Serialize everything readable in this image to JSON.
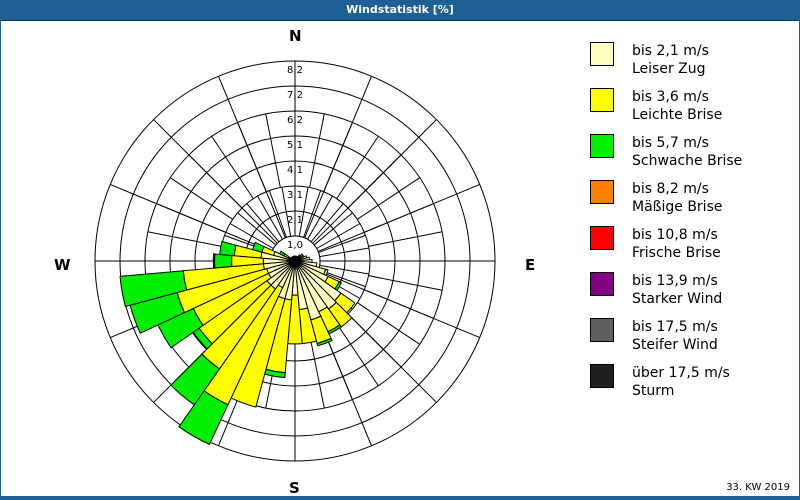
{
  "title": "Windstatistik [%]",
  "footer": "33. KW 2019",
  "compass": {
    "n": "N",
    "e": "E",
    "s": "S",
    "w": "W"
  },
  "legend": [
    {
      "range": "bis 2,1 m/s",
      "name": "Leiser Zug",
      "color": "#ffffc0"
    },
    {
      "range": "bis 3,6 m/s",
      "name": "Leichte Brise",
      "color": "#ffff00"
    },
    {
      "range": "bis 5,7 m/s",
      "name": "Schwache Brise",
      "color": "#00ee00"
    },
    {
      "range": "bis 8,2 m/s",
      "name": "Mäßige Brise",
      "color": "#ff8000"
    },
    {
      "range": "bis 10,8 m/s",
      "name": "Frische Brise",
      "color": "#ff0000"
    },
    {
      "range": "bis 13,9 m/s",
      "name": "Starker Wind",
      "color": "#800080"
    },
    {
      "range": "bis 17,5 m/s",
      "name": "Steifer Wind",
      "color": "#606060"
    },
    {
      "range": "über 17,5 m/s",
      "name": "Sturm",
      "color": "#202020"
    }
  ],
  "chart_data": {
    "type": "windrose",
    "title": "Windstatistik [%]",
    "unit": "%",
    "ring_labels": [
      "1,0",
      "2,1",
      "3,1",
      "4,1",
      "5,1",
      "6,2",
      "7,2",
      "8,2"
    ],
    "rmax": 8.2,
    "sector_width_deg": 10,
    "series_names": [
      "bis 2,1 m/s",
      "bis 3,6 m/s",
      "bis 5,7 m/s",
      "bis 8,2 m/s"
    ],
    "sectors": [
      {
        "dir": 0,
        "values": [
          0.2,
          0,
          0,
          0
        ]
      },
      {
        "dir": 10,
        "values": [
          0.2,
          0,
          0,
          0
        ]
      },
      {
        "dir": 20,
        "values": [
          0.2,
          0,
          0,
          0
        ]
      },
      {
        "dir": 30,
        "values": [
          0.2,
          0,
          0,
          0
        ]
      },
      {
        "dir": 40,
        "values": [
          0.3,
          0,
          0,
          0
        ]
      },
      {
        "dir": 50,
        "values": [
          0.4,
          0,
          0,
          0
        ]
      },
      {
        "dir": 60,
        "values": [
          0.4,
          0,
          0,
          0
        ]
      },
      {
        "dir": 70,
        "values": [
          0.5,
          0,
          0,
          0
        ]
      },
      {
        "dir": 80,
        "values": [
          0.6,
          0,
          0,
          0
        ]
      },
      {
        "dir": 90,
        "values": [
          0.7,
          0,
          0,
          0
        ]
      },
      {
        "dir": 100,
        "values": [
          0.9,
          0,
          0,
          0
        ]
      },
      {
        "dir": 110,
        "values": [
          1.3,
          0.1,
          0,
          0
        ]
      },
      {
        "dir": 120,
        "values": [
          1.5,
          0.5,
          0.1,
          0
        ]
      },
      {
        "dir": 130,
        "values": [
          2.3,
          0.7,
          0,
          0
        ]
      },
      {
        "dir": 140,
        "values": [
          2.4,
          0.9,
          0,
          0
        ]
      },
      {
        "dir": 150,
        "values": [
          2.3,
          0.9,
          0.1,
          0
        ]
      },
      {
        "dir": 160,
        "values": [
          2.5,
          1.0,
          0.1,
          0
        ]
      },
      {
        "dir": 170,
        "values": [
          2.0,
          1.4,
          0,
          0
        ]
      },
      {
        "dir": 180,
        "values": [
          1.4,
          2.0,
          0,
          0
        ]
      },
      {
        "dir": 190,
        "values": [
          1.6,
          3.0,
          0.2,
          0
        ]
      },
      {
        "dir": 200,
        "values": [
          1.6,
          4.6,
          0,
          0
        ]
      },
      {
        "dir": 210,
        "values": [
          1.2,
          5.3,
          1.8,
          0
        ]
      },
      {
        "dir": 220,
        "values": [
          1.4,
          4.0,
          1.8,
          0
        ]
      },
      {
        "dir": 230,
        "values": [
          1.4,
          3.4,
          0.3,
          0
        ]
      },
      {
        "dir": 240,
        "values": [
          1.2,
          3.4,
          1.6,
          0
        ]
      },
      {
        "dir": 250,
        "values": [
          1.2,
          3.8,
          2.0,
          0
        ]
      },
      {
        "dir": 260,
        "values": [
          1.3,
          3.3,
          2.6,
          0
        ]
      },
      {
        "dir": 270,
        "values": [
          1.3,
          1.3,
          0.7,
          0.05
        ]
      },
      {
        "dir": 280,
        "values": [
          1.4,
          1.1,
          0.6,
          0
        ]
      },
      {
        "dir": 290,
        "values": [
          0.9,
          0.5,
          0.4,
          0
        ]
      },
      {
        "dir": 300,
        "values": [
          0.3,
          0.2,
          0.2,
          0
        ]
      },
      {
        "dir": 310,
        "values": [
          0.2,
          0,
          0,
          0
        ]
      },
      {
        "dir": 320,
        "values": [
          0.2,
          0,
          0,
          0
        ]
      },
      {
        "dir": 330,
        "values": [
          0.2,
          0,
          0,
          0
        ]
      },
      {
        "dir": 340,
        "values": [
          0.2,
          0,
          0,
          0
        ]
      },
      {
        "dir": 350,
        "values": [
          0.2,
          0,
          0,
          0
        ]
      }
    ],
    "colors": [
      "#ffffc0",
      "#ffff00",
      "#00ee00",
      "#ff8000"
    ]
  }
}
